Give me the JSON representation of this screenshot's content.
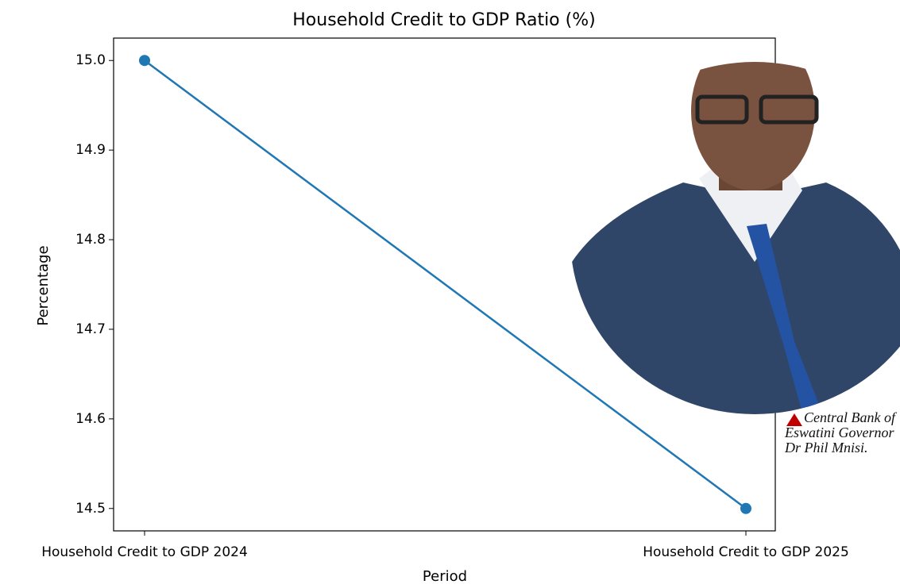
{
  "chart_data": {
    "type": "line",
    "title": "Household Credit to GDP Ratio (%)",
    "x_label": "Period",
    "y_label": "Percentage",
    "categories": [
      "Household Credit to GDP 2024",
      "Household Credit to GDP 2025"
    ],
    "series": [
      {
        "name": "Household Credit to GDP Ratio",
        "color": "#1f77b4",
        "values": [
          15.0,
          14.5
        ]
      }
    ],
    "ylim": [
      14.475,
      15.025
    ],
    "yticks": [
      14.5,
      14.6,
      14.7,
      14.8,
      14.9,
      {
        "value": 15.0,
        "label": "15.0"
      }
    ],
    "grid": false
  },
  "photo": {
    "caption": "Central Bank of Eswatini Governor Dr Phil Mnisi."
  }
}
